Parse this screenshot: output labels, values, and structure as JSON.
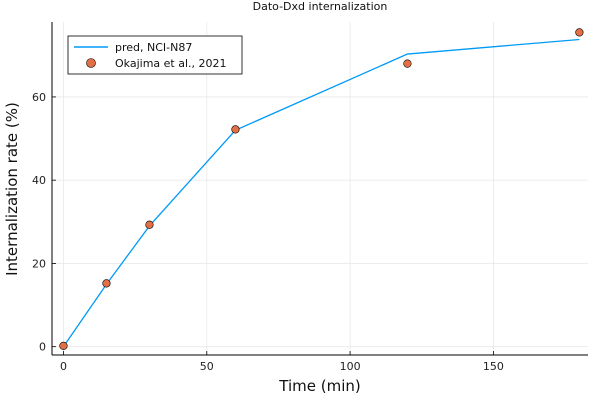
{
  "chart_data": {
    "type": "line",
    "title": "Dato-Dxd internalization",
    "xlabel": "Time (min)",
    "ylabel": "Internalization rate (%)",
    "xlim": [
      -4,
      183
    ],
    "ylim": [
      -2,
      78
    ],
    "x_ticks": [
      0,
      50,
      100,
      150
    ],
    "y_ticks": [
      0,
      20,
      40,
      60
    ],
    "grid": true,
    "legend_position": "top-left",
    "series": [
      {
        "name": "pred, NCI-N87",
        "kind": "line",
        "color": "#009af9",
        "x": [
          0,
          15,
          30,
          60,
          120,
          180
        ],
        "y": [
          0,
          15,
          29,
          52,
          70.3,
          73.8
        ]
      },
      {
        "name": "Okajima et al., 2021",
        "kind": "scatter",
        "color": "#e26f46",
        "x": [
          0,
          15,
          30,
          60,
          120,
          180
        ],
        "y": [
          0.2,
          15.2,
          29.3,
          52.2,
          68,
          75.5
        ]
      }
    ]
  }
}
